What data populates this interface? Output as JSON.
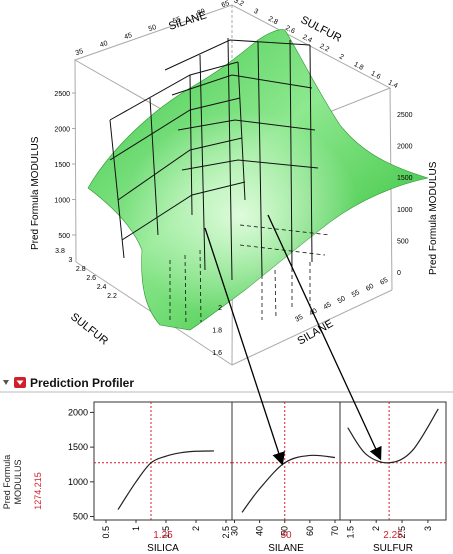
{
  "surface": {
    "axis_silane_label": "SILANE",
    "axis_sulfur_label": "SULFUR",
    "axis_silane_label_front": "SILANE",
    "axis_sulfur_label_front": "SULFUR",
    "z_label_left": "Pred Formula MODULUS",
    "z_label_right": "Pred Formula MODULUS",
    "silane_top_ticks": [
      "35",
      "40",
      "45",
      "50",
      "55",
      "60",
      "65"
    ],
    "sulfur_top_ticks": [
      "3.2",
      "3",
      "2.8",
      "2.6",
      "2.4",
      "2.2",
      "2",
      "1.8",
      "1.6",
      "1.4"
    ],
    "z_left_ticks": [
      "2500",
      "2000",
      "1500",
      "1000",
      "500"
    ],
    "z_right_ticks": [
      "2500",
      "2000",
      "1500",
      "1000",
      "500",
      "0"
    ],
    "sulfur_front_ticks": [
      "3.8",
      "3",
      "2.8",
      "2.6",
      "2.4",
      "2.2"
    ],
    "silane_front_ticks": [
      "65",
      "60",
      "55",
      "50",
      "45",
      "40",
      "35"
    ],
    "bottom_ticks": [
      "2",
      "1.8",
      "1.6"
    ],
    "surface_color": "#55d45a"
  },
  "profiler": {
    "title": "Prediction Profiler",
    "y_label_line1": "Pred Formula",
    "y_label_line2": "MODULUS",
    "current_value": "1274.215",
    "y_ticks": [
      "2000",
      "1500",
      "1000",
      "500"
    ],
    "panels": [
      {
        "factor": "SILICA",
        "current": "1.25",
        "ticks": [
          "0.5",
          "1",
          "1.5",
          "2",
          "2.5"
        ]
      },
      {
        "factor": "SILANE",
        "current": "50",
        "ticks": [
          "30",
          "40",
          "50",
          "60",
          "70"
        ]
      },
      {
        "factor": "SULFUR",
        "current": "2.25",
        "ticks": [
          "1.5",
          "2",
          "2.5",
          "3"
        ]
      }
    ],
    "accent": "#d0202c"
  },
  "chart_data": {
    "type": "line",
    "ylabel": "Pred Formula MODULUS",
    "ylim": [
      450,
      2150
    ],
    "current_y": 1274.215,
    "series": [
      {
        "name": "SILICA",
        "x": [
          0.7,
          1.0,
          1.25,
          1.5,
          1.75,
          2.0,
          2.3
        ],
        "y": [
          600,
          1000,
          1274,
          1370,
          1420,
          1440,
          1445
        ],
        "current_x": 1.25,
        "xlim": [
          0.3,
          2.6
        ]
      },
      {
        "name": "SILANE",
        "x": [
          33,
          40,
          50,
          60,
          70
        ],
        "y": [
          560,
          900,
          1274,
          1380,
          1350
        ],
        "current_x": 50,
        "xlim": [
          29,
          72
        ]
      },
      {
        "name": "SULFUR",
        "x": [
          1.45,
          1.8,
          2.25,
          2.7,
          3.2
        ],
        "y": [
          1780,
          1400,
          1274,
          1450,
          2050
        ],
        "current_x": 2.25,
        "xlim": [
          1.3,
          3.35
        ]
      }
    ]
  }
}
